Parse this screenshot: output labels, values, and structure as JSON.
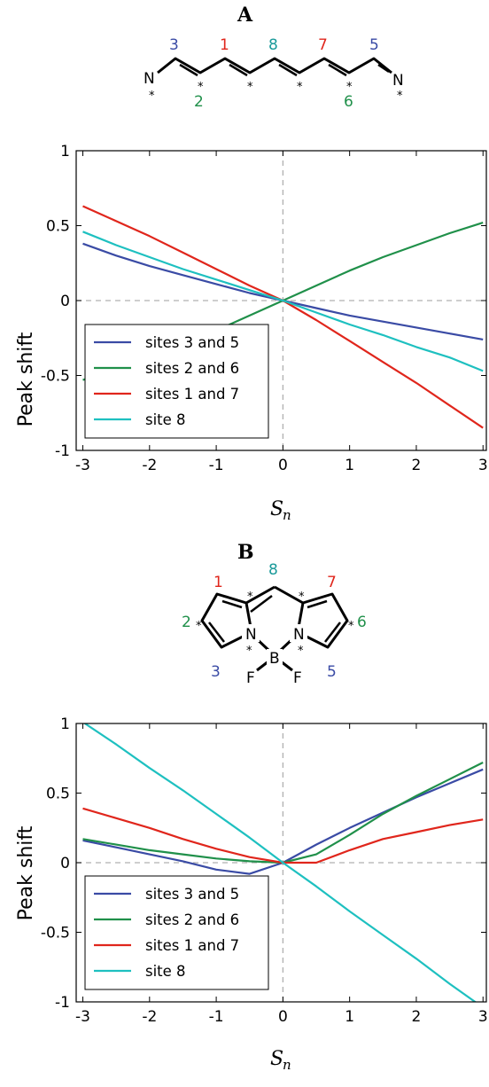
{
  "panels": [
    {
      "letter": "A",
      "molecule": {
        "site_labels": [
          {
            "text": "3",
            "color": "#3a4ba5"
          },
          {
            "text": "1",
            "color": "#e0261c"
          },
          {
            "text": "8",
            "color": "#1a9a9a"
          },
          {
            "text": "7",
            "color": "#e0261c"
          },
          {
            "text": "5",
            "color": "#3a4ba5"
          },
          {
            "text": "2",
            "color": "#20904a"
          },
          {
            "text": "6",
            "color": "#20904a"
          }
        ],
        "atoms": [
          "N",
          "N"
        ]
      }
    },
    {
      "letter": "B",
      "molecule": {
        "site_labels": [
          {
            "text": "1",
            "color": "#e0261c"
          },
          {
            "text": "8",
            "color": "#1a9a9a"
          },
          {
            "text": "7",
            "color": "#e0261c"
          },
          {
            "text": "2",
            "color": "#20904a"
          },
          {
            "text": "6",
            "color": "#20904a"
          },
          {
            "text": "3",
            "color": "#3a4ba5"
          },
          {
            "text": "5",
            "color": "#3a4ba5"
          }
        ],
        "atoms": [
          "N",
          "N",
          "B",
          "F",
          "F"
        ]
      }
    }
  ],
  "chart_data": [
    {
      "type": "line",
      "ylabel": "Peak shift",
      "xlabel": "S",
      "xlabel_sub": "n",
      "xlim": [
        -3.1,
        3.05
      ],
      "ylim": [
        -1,
        1
      ],
      "xticks": [
        "-3",
        "-2",
        "-1",
        "0",
        "1",
        "2",
        "3"
      ],
      "yticks": [
        "1",
        "0.5",
        "0",
        "-0.5",
        "-1"
      ],
      "reference_lines": "dashed gray at x=0 and y=0",
      "legend_position": "lower-left",
      "x": [
        -3,
        -2.5,
        -2,
        -1.5,
        -1,
        -0.5,
        0,
        0.5,
        1,
        1.5,
        2,
        2.5,
        3
      ],
      "series": [
        {
          "name": "sites 3 and 5",
          "color": "#3a4ba5",
          "values": [
            0.38,
            0.3,
            0.23,
            0.17,
            0.11,
            0.05,
            0.0,
            -0.05,
            -0.1,
            -0.14,
            -0.18,
            -0.22,
            -0.26
          ]
        },
        {
          "name": "sites 2 and 6",
          "color": "#20904a",
          "values": [
            -0.53,
            -0.46,
            -0.38,
            -0.29,
            -0.2,
            -0.1,
            0.0,
            0.1,
            0.2,
            0.29,
            0.37,
            0.45,
            0.52
          ]
        },
        {
          "name": "sites 1 and 7",
          "color": "#e0261c",
          "values": [
            0.63,
            0.53,
            0.43,
            0.32,
            0.21,
            0.1,
            0.0,
            -0.13,
            -0.27,
            -0.41,
            -0.55,
            -0.7,
            -0.85
          ]
        },
        {
          "name": "site 8",
          "color": "#1ec0c0",
          "values": [
            0.46,
            0.37,
            0.29,
            0.21,
            0.14,
            0.07,
            0.0,
            -0.08,
            -0.16,
            -0.23,
            -0.31,
            -0.38,
            -0.47
          ]
        }
      ]
    },
    {
      "type": "line",
      "ylabel": "Peak shift",
      "xlabel": "S",
      "xlabel_sub": "n",
      "xlim": [
        -3.1,
        3.05
      ],
      "ylim": [
        -1,
        1
      ],
      "xticks": [
        "-3",
        "-2",
        "-1",
        "0",
        "1",
        "2",
        "3"
      ],
      "yticks": [
        "1",
        "0.5",
        "0",
        "-0.5",
        "-1"
      ],
      "reference_lines": "dashed gray at x=0 and y=0",
      "legend_position": "lower-left",
      "x": [
        -3,
        -2.5,
        -2,
        -1.5,
        -1,
        -0.5,
        0,
        0.5,
        1,
        1.5,
        2,
        2.5,
        3
      ],
      "series": [
        {
          "name": "sites 3 and 5",
          "color": "#3a4ba5",
          "values": [
            0.16,
            0.11,
            0.06,
            0.01,
            -0.05,
            -0.08,
            0.0,
            0.13,
            0.25,
            0.36,
            0.47,
            0.57,
            0.67
          ]
        },
        {
          "name": "sites 2 and 6",
          "color": "#20904a",
          "values": [
            0.17,
            0.13,
            0.09,
            0.06,
            0.03,
            0.01,
            0.0,
            0.06,
            0.2,
            0.35,
            0.48,
            0.6,
            0.72
          ]
        },
        {
          "name": "sites 1 and 7",
          "color": "#e0261c",
          "values": [
            0.39,
            0.32,
            0.25,
            0.17,
            0.1,
            0.04,
            0.0,
            0.0,
            0.09,
            0.17,
            0.22,
            0.27,
            0.31
          ]
        },
        {
          "name": "site 8",
          "color": "#1ec0c0",
          "values": [
            1.01,
            0.85,
            0.68,
            0.52,
            0.35,
            0.18,
            0.0,
            -0.17,
            -0.35,
            -0.52,
            -0.69,
            -0.87,
            -1.04
          ]
        }
      ]
    }
  ]
}
